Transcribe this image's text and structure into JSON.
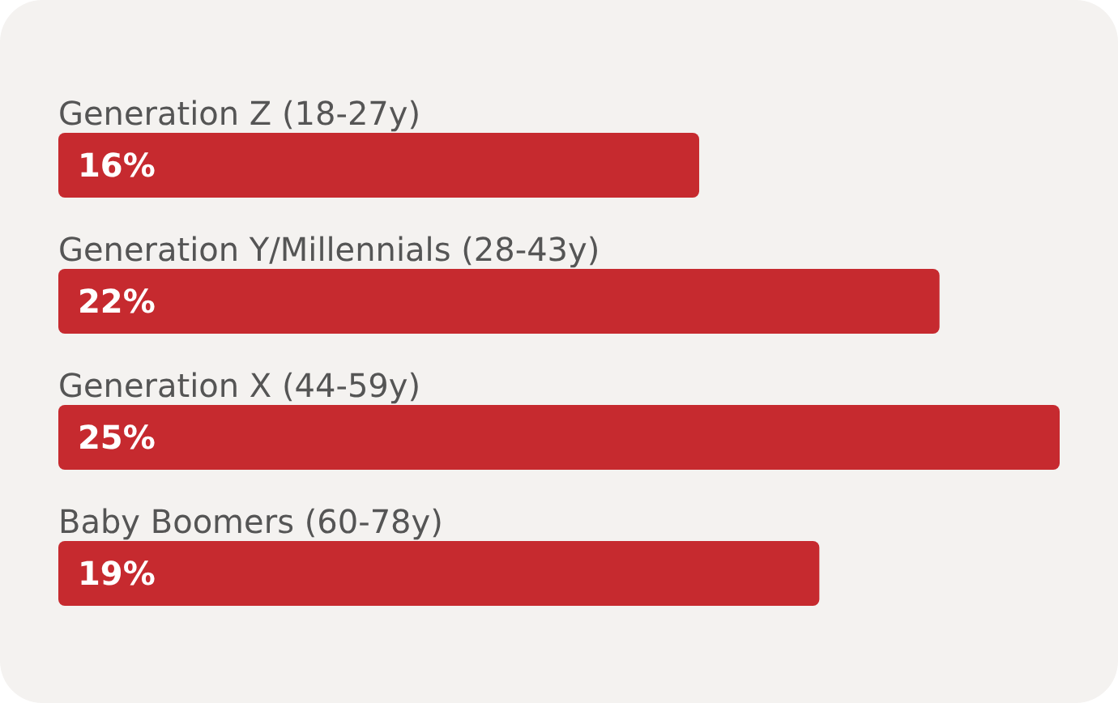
{
  "chart_data": {
    "type": "bar",
    "orientation": "horizontal",
    "categories": [
      "Generation Z (18-27y)",
      "Generation Y/Millennials (28-43y)",
      "Generation X (44-59y)",
      "Baby Boomers (60-78y)"
    ],
    "values": [
      16,
      22,
      25,
      19
    ],
    "value_labels": [
      "16%",
      "22%",
      "25%",
      "19%"
    ],
    "color": "#c62a2f",
    "tick_labels": "y"
  }
}
